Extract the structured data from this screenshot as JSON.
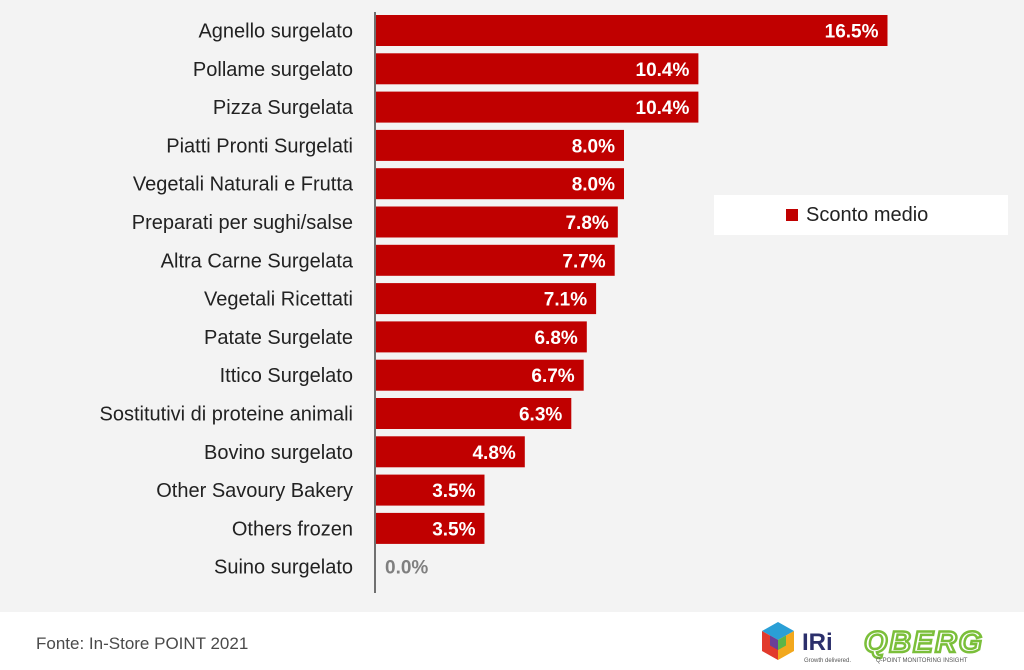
{
  "footer": {
    "source": "Fonte: In-Store POINT 2021"
  },
  "logos": {
    "iri": {
      "name": "IRi",
      "tagline": "Growth delivered."
    },
    "qberg": {
      "name": "QBERG",
      "tagline": "Q-POINT MONITORING INSIGHT"
    }
  },
  "colors": {
    "bar": "#c00000",
    "zero_label": "#7f7f7f",
    "axis": "#444444"
  },
  "chart_data": {
    "type": "bar",
    "orientation": "horizontal",
    "categories": [
      "Agnello surgelato",
      "Pollame surgelato",
      "Pizza Surgelata",
      "Piatti Pronti Surgelati",
      "Vegetali Naturali e Frutta",
      "Preparati per sughi/salse",
      "Altra Carne Surgelata",
      "Vegetali Ricettati",
      "Patate Surgelate",
      "Ittico Surgelato",
      "Sostitutivi di proteine animali",
      "Bovino surgelato",
      "Other Savoury Bakery",
      "Others frozen",
      "Suino surgelato"
    ],
    "series": [
      {
        "name": "Sconto medio",
        "values": [
          16.5,
          10.4,
          10.4,
          8.0,
          8.0,
          7.8,
          7.7,
          7.1,
          6.8,
          6.7,
          6.3,
          4.8,
          3.5,
          3.5,
          0.0
        ],
        "labels": [
          "16.5%",
          "10.4%",
          "10.4%",
          "8.0%",
          "8.0%",
          "7.8%",
          "7.7%",
          "7.1%",
          "6.8%",
          "6.7%",
          "6.3%",
          "4.8%",
          "3.5%",
          "3.5%",
          "0.0%"
        ]
      }
    ],
    "legend": {
      "position": "right",
      "label": "Sconto medio"
    },
    "xlim": [
      0,
      20
    ],
    "grid": false
  }
}
